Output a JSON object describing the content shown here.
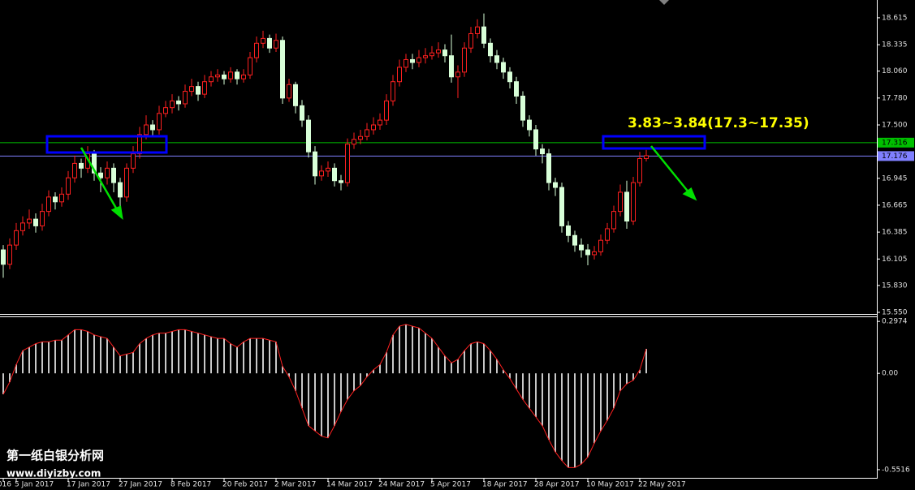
{
  "chart_data": [
    {
      "type": "candlestick",
      "x": [
        "016",
        null,
        "5 Jan 2017",
        null,
        null,
        null,
        null,
        null,
        null,
        null,
        "17 Jan 2017",
        null,
        null,
        null,
        null,
        null,
        null,
        null,
        "27 Jan 2017",
        null,
        null,
        null,
        null,
        null,
        null,
        null,
        "8 Feb 2017",
        null,
        null,
        null,
        null,
        null,
        null,
        null,
        "20 Feb 2017",
        null,
        null,
        null,
        null,
        null,
        null,
        null,
        "2 Mar 2017",
        null,
        null,
        null,
        null,
        null,
        null,
        null,
        "14 Mar 2017",
        null,
        null,
        null,
        null,
        null,
        null,
        null,
        "24 Mar 2017",
        null,
        null,
        null,
        null,
        null,
        null,
        null,
        "5 Apr 2017",
        null,
        null,
        null,
        null,
        null,
        null,
        null,
        "18 Apr 2017",
        null,
        null,
        null,
        null,
        null,
        null,
        null,
        "28 Apr 2017",
        null,
        null,
        null,
        null,
        null,
        null,
        null,
        "10 May 2017",
        null,
        null,
        null,
        null,
        null,
        null,
        null,
        "22 May 2017",
        null
      ],
      "open": [
        16.2,
        16.05,
        16.25,
        16.4,
        16.48,
        16.52,
        16.45,
        16.6,
        16.75,
        16.7,
        16.78,
        16.95,
        17.1,
        17.05,
        17.2,
        17.0,
        16.95,
        17.05,
        16.9,
        16.75,
        17.05,
        17.2,
        17.4,
        17.5,
        17.45,
        17.62,
        17.68,
        17.75,
        17.72,
        17.85,
        17.9,
        17.82,
        17.95,
        18.0,
        18.02,
        17.98,
        18.05,
        17.98,
        18.02,
        18.2,
        18.35,
        18.4,
        18.3,
        18.38,
        17.78,
        17.92,
        17.7,
        17.55,
        17.22,
        16.97,
        17.02,
        17.05,
        16.92,
        16.9,
        17.3,
        17.35,
        17.38,
        17.45,
        17.5,
        17.55,
        17.75,
        17.95,
        18.1,
        18.18,
        18.15,
        18.2,
        18.22,
        18.25,
        18.28,
        18.22,
        18.0,
        18.05,
        18.3,
        18.45,
        18.52,
        18.35,
        18.22,
        18.15,
        18.05,
        17.95,
        17.8,
        17.55,
        17.45,
        17.25,
        17.2,
        16.9,
        16.85,
        16.45,
        16.35,
        16.25,
        16.2,
        16.15,
        16.18,
        16.3,
        16.42,
        16.6,
        16.8,
        16.5,
        16.9,
        17.15
      ],
      "high": [
        16.25,
        16.32,
        16.48,
        16.55,
        16.62,
        16.58,
        16.68,
        16.82,
        16.8,
        16.85,
        17.02,
        17.18,
        17.15,
        17.28,
        17.24,
        17.06,
        17.12,
        17.1,
        16.95,
        17.1,
        17.28,
        17.48,
        17.6,
        17.55,
        17.7,
        17.75,
        17.82,
        17.8,
        17.92,
        17.98,
        17.95,
        18.02,
        18.06,
        18.08,
        18.06,
        18.1,
        18.08,
        18.08,
        18.26,
        18.42,
        18.48,
        18.44,
        18.45,
        18.42,
        17.98,
        17.95,
        17.76,
        17.6,
        17.28,
        17.08,
        17.12,
        17.1,
        16.98,
        17.36,
        17.42,
        17.45,
        17.52,
        17.58,
        17.62,
        17.82,
        18.02,
        18.18,
        18.24,
        18.24,
        18.28,
        18.3,
        18.32,
        18.36,
        18.34,
        18.44,
        18.12,
        18.36,
        18.52,
        18.6,
        18.66,
        18.4,
        18.28,
        18.2,
        18.1,
        18.0,
        17.85,
        17.6,
        17.5,
        17.3,
        17.25,
        16.95,
        16.9,
        16.5,
        16.4,
        16.32,
        16.26,
        16.24,
        16.36,
        16.48,
        16.66,
        16.88,
        16.92,
        16.96,
        17.22,
        17.24
      ],
      "low": [
        15.91,
        16.0,
        16.2,
        16.35,
        16.42,
        16.38,
        16.4,
        16.55,
        16.62,
        16.65,
        16.72,
        16.9,
        16.95,
        17.0,
        16.92,
        16.8,
        16.88,
        16.8,
        16.62,
        16.7,
        17.0,
        17.15,
        17.35,
        17.38,
        17.4,
        17.58,
        17.62,
        17.65,
        17.68,
        17.8,
        17.75,
        17.78,
        17.9,
        17.95,
        17.92,
        17.94,
        17.92,
        17.94,
        17.98,
        18.15,
        18.3,
        18.25,
        18.26,
        17.72,
        17.74,
        17.62,
        17.48,
        17.16,
        16.88,
        16.92,
        16.96,
        16.86,
        16.82,
        16.86,
        17.25,
        17.3,
        17.34,
        17.4,
        17.45,
        17.5,
        17.7,
        17.9,
        18.05,
        18.08,
        18.1,
        18.14,
        18.18,
        18.2,
        18.15,
        17.94,
        17.78,
        18.0,
        18.25,
        18.4,
        18.3,
        18.15,
        18.08,
        17.98,
        17.88,
        17.72,
        17.48,
        17.38,
        17.18,
        17.1,
        16.82,
        16.76,
        16.38,
        16.28,
        16.18,
        16.12,
        16.04,
        16.1,
        16.14,
        16.26,
        16.38,
        16.55,
        16.42,
        16.46,
        16.86,
        17.12
      ],
      "close": [
        16.05,
        16.25,
        16.4,
        16.48,
        16.52,
        16.45,
        16.6,
        16.75,
        16.7,
        16.78,
        16.95,
        17.1,
        17.05,
        17.2,
        17.0,
        16.95,
        17.05,
        16.9,
        16.75,
        17.05,
        17.2,
        17.4,
        17.5,
        17.45,
        17.62,
        17.68,
        17.75,
        17.72,
        17.85,
        17.9,
        17.82,
        17.95,
        18.0,
        18.02,
        17.98,
        18.05,
        17.98,
        18.02,
        18.2,
        18.35,
        18.4,
        18.3,
        18.38,
        17.78,
        17.92,
        17.7,
        17.55,
        17.22,
        16.97,
        17.02,
        17.05,
        16.92,
        16.9,
        17.3,
        17.35,
        17.38,
        17.45,
        17.5,
        17.55,
        17.75,
        17.95,
        18.1,
        18.18,
        18.15,
        18.2,
        18.22,
        18.25,
        18.28,
        18.22,
        18.0,
        18.05,
        18.3,
        18.45,
        18.52,
        18.35,
        18.22,
        18.15,
        18.05,
        17.95,
        17.8,
        17.55,
        17.45,
        17.25,
        17.2,
        16.9,
        16.85,
        16.45,
        16.35,
        16.25,
        16.2,
        16.15,
        16.18,
        16.3,
        16.42,
        16.6,
        16.8,
        16.5,
        16.9,
        17.15,
        17.18
      ],
      "up_color": "#ff2020",
      "down_color": "#d8ffd8",
      "ylim": [
        15.525,
        18.8
      ],
      "yticks": [
        18.615,
        18.335,
        {
          "value": 18.06,
          "label": "18.060"
        },
        {
          "value": 17.78,
          "label": "17.780"
        },
        {
          "value": 17.5,
          "label": "17.500"
        },
        16.945,
        16.665,
        16.385,
        16.105,
        {
          "value": 15.83,
          "label": "15.830"
        },
        {
          "value": 15.55,
          "label": "15.550"
        }
      ],
      "price_lines": [
        {
          "value": 17.316,
          "color": "#00c000"
        },
        {
          "value": 17.176,
          "color": "#8080ff"
        }
      ],
      "annotation": "3.83~3.84(17.3~17.35)"
    },
    {
      "type": "histogram",
      "values": [
        -0.12,
        -0.05,
        0.05,
        0.13,
        0.15,
        0.17,
        0.18,
        0.18,
        0.19,
        0.19,
        0.22,
        0.25,
        0.25,
        0.24,
        0.22,
        0.21,
        0.2,
        0.15,
        0.1,
        0.11,
        0.12,
        0.17,
        0.2,
        0.22,
        0.23,
        0.23,
        0.24,
        0.25,
        0.25,
        0.24,
        0.23,
        0.22,
        0.21,
        0.2,
        0.2,
        0.17,
        0.15,
        0.18,
        0.2,
        0.2,
        0.2,
        0.19,
        0.18,
        0.04,
        -0.02,
        -0.1,
        -0.2,
        -0.3,
        -0.33,
        -0.36,
        -0.37,
        -0.3,
        -0.22,
        -0.15,
        -0.1,
        -0.07,
        -0.02,
        0.02,
        0.05,
        0.12,
        0.22,
        0.27,
        0.28,
        0.27,
        0.26,
        0.23,
        0.2,
        0.15,
        0.1,
        0.06,
        0.08,
        0.13,
        0.17,
        0.18,
        0.17,
        0.13,
        0.08,
        0.02,
        -0.03,
        -0.09,
        -0.15,
        -0.2,
        -0.25,
        -0.3,
        -0.38,
        -0.45,
        -0.5,
        -0.54,
        -0.54,
        -0.52,
        -0.48,
        -0.4,
        -0.33,
        -0.27,
        -0.2,
        -0.1,
        -0.06,
        -0.04,
        0.02,
        0.14
      ],
      "color": "#c8c8c8",
      "line_color": "#ff2020",
      "ylim": [
        -0.603,
        0.326
      ],
      "yticks": [
        0.2974,
        {
          "value": 0,
          "label": "0.00"
        },
        -0.5516
      ]
    },
    {
      "type": "watermark",
      "lines": [
        "第一纸白银分析网",
        "www.diyizby.com"
      ]
    }
  ]
}
